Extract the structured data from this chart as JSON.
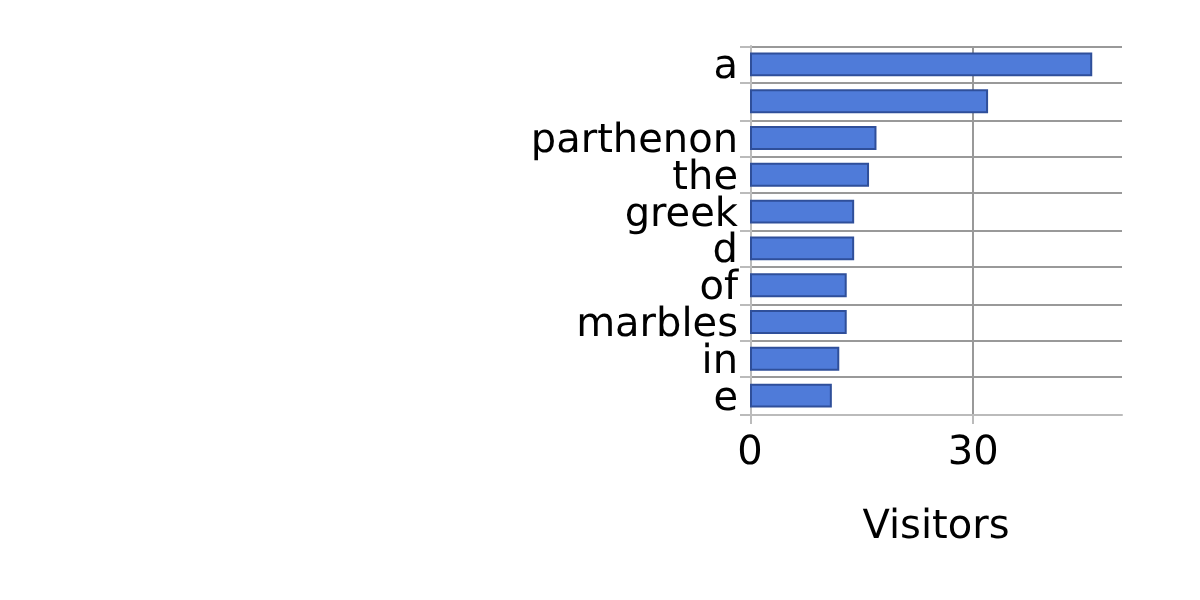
{
  "chart_data": {
    "type": "bar",
    "orientation": "horizontal",
    "categories": [
      "a",
      null,
      "parthenon",
      "the",
      "greek",
      "d",
      "of",
      "marbles",
      "in",
      "e"
    ],
    "values": [
      46,
      32,
      17,
      16,
      14,
      14,
      13,
      13,
      12,
      11
    ],
    "color": "#4f7bd9",
    "xlabel": "Visitors",
    "xlim": [
      0,
      50
    ],
    "xticks": [
      0,
      30
    ],
    "grid": true
  }
}
